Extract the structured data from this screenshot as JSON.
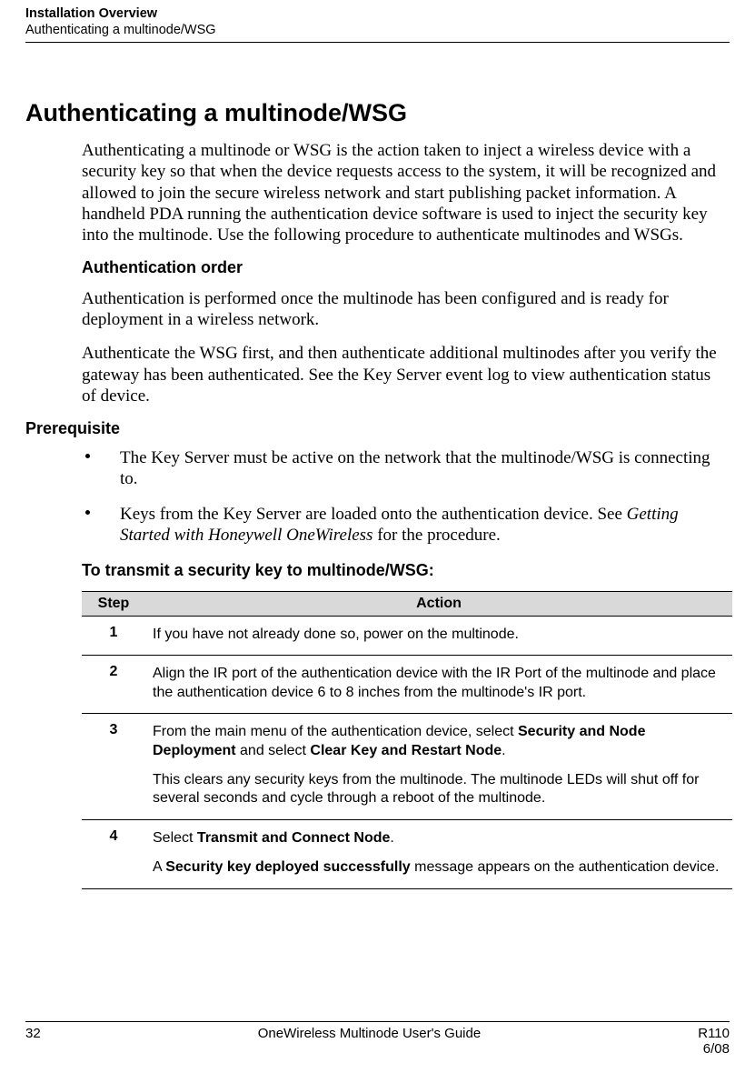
{
  "header": {
    "line1": "Installation Overview",
    "line2": "Authenticating a multinode/WSG"
  },
  "title": "Authenticating a multinode/WSG",
  "lead": "Authenticating a multinode or WSG is the action taken to inject a wireless device with a security key so that when the device requests access to the system, it will be recognized and allowed to join the secure wireless network and start publishing packet information. A handheld PDA running the authentication device software is used to inject the security key into the multinode. Use the following procedure to authenticate multinodes and WSGs.",
  "sub1": "Authentication order",
  "para1": "Authentication is performed once the multinode has been configured and is ready for deployment in a wireless network.",
  "para2": "Authenticate the WSG first, and then authenticate additional multinodes after you verify the gateway has been authenticated. See the Key Server event log to view authentication status of device.",
  "prereq_heading": "Prerequisite",
  "prereq": [
    {
      "pre": "The Key Server must be active on the network that the multinode/WSG is connecting to.",
      "em": "",
      "post": ""
    },
    {
      "pre": "Keys from the Key Server are loaded onto the authentication device.  See ",
      "em": "Getting Started with Honeywell OneWireless",
      "post": " for the procedure."
    }
  ],
  "proc_heading": "To transmit a security key to multinode/WSG:",
  "table": {
    "col_step": "Step",
    "col_action": "Action",
    "rows": [
      {
        "n": "1",
        "paras": [
          {
            "segs": [
              {
                "t": "If you have not already done so, power on the multinode.",
                "b": false
              }
            ]
          }
        ]
      },
      {
        "n": "2",
        "paras": [
          {
            "segs": [
              {
                "t": "Align the IR port of the authentication device with the IR Port of the multinode and place the authentication device 6 to 8 inches from the multinode's IR port.",
                "b": false
              }
            ]
          }
        ]
      },
      {
        "n": "3",
        "paras": [
          {
            "segs": [
              {
                "t": "From the main menu of the authentication device, select ",
                "b": false
              },
              {
                "t": "Security and Node Deployment",
                "b": true
              },
              {
                "t": " and select ",
                "b": false
              },
              {
                "t": "Clear Key and Restart Node",
                "b": true
              },
              {
                "t": ".",
                "b": false
              }
            ]
          },
          {
            "segs": [
              {
                "t": "This clears any security keys from the multinode. The multinode LEDs will shut off for several seconds and cycle through a reboot of the multinode.",
                "b": false
              }
            ]
          }
        ]
      },
      {
        "n": "4",
        "paras": [
          {
            "segs": [
              {
                "t": "Select ",
                "b": false
              },
              {
                "t": "Transmit and Connect Node",
                "b": true
              },
              {
                "t": ".",
                "b": false
              }
            ]
          },
          {
            "segs": [
              {
                "t": "A ",
                "b": false
              },
              {
                "t": "Security key deployed successfully",
                "b": true
              },
              {
                "t": " message appears on the authentication device.",
                "b": false
              }
            ]
          }
        ]
      }
    ]
  },
  "footer": {
    "page": "32",
    "center": "OneWireless Multinode User's Guide",
    "right1": "R110",
    "right2": "6/08"
  },
  "colors": {
    "table_header_bg": "#d9d9d9",
    "text": "#000000",
    "bg": "#ffffff"
  },
  "fonts": {
    "heading_family": "Arial",
    "body_serif_family": "Times New Roman",
    "title_size_pt": 20,
    "sub_size_pt": 13,
    "body_size_pt": 14,
    "table_size_pt": 12
  }
}
